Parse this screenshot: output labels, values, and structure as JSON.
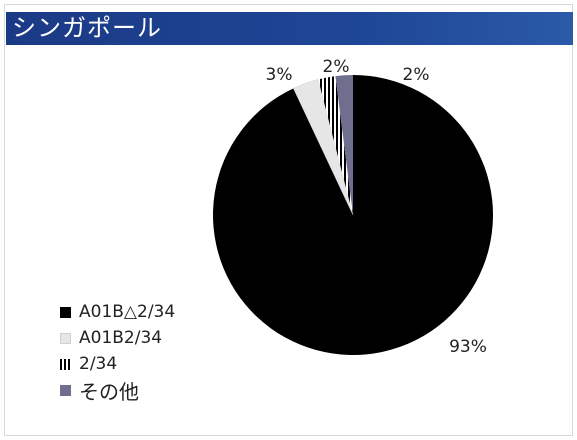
{
  "window": {
    "title": "シンガポール"
  },
  "chart_data": {
    "type": "pie",
    "title": "シンガポール",
    "categories": [
      "A01B△2/34",
      "A01B2/34",
      "2/34",
      "その他"
    ],
    "values": [
      93,
      3,
      2,
      2
    ],
    "value_labels": [
      "93%",
      "3%",
      "2%",
      "2%"
    ],
    "legend_position": "bottom-left",
    "colors": {
      "A01B△2/34": "#000000",
      "A01B2/34": "#e6e6e6",
      "2/34": "#000000",
      "その他": "#6f6e8e"
    },
    "patterns": {
      "2/34": "vertical-stripes"
    }
  }
}
